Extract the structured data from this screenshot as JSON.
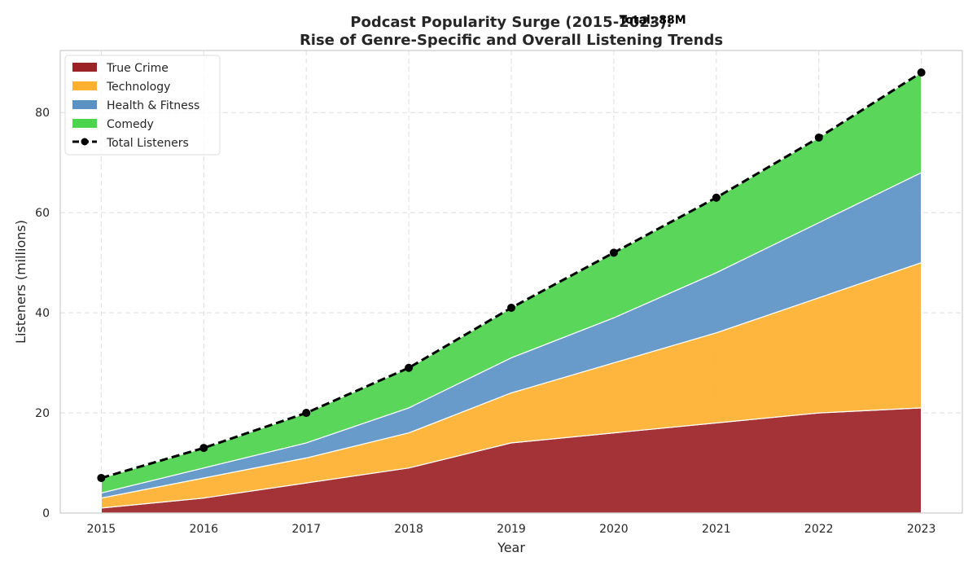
{
  "chart_data": {
    "type": "area",
    "title_line1": "Podcast Popularity Surge (2015-2023):",
    "title_line2": "Rise of Genre-Specific and Overall Listening Trends",
    "xlabel": "Year",
    "ylabel": "Listeners (millions)",
    "x": [
      2015,
      2016,
      2017,
      2018,
      2019,
      2020,
      2021,
      2022,
      2023
    ],
    "xlim": [
      2014.6,
      2023.4
    ],
    "ylim": [
      0,
      92.4
    ],
    "yticks": [
      0,
      20,
      40,
      60,
      80
    ],
    "grid": true,
    "legend_position": "top-left",
    "series": [
      {
        "name": "True Crime",
        "color": "#9b2226",
        "values": [
          1,
          3,
          6,
          9,
          14,
          16,
          18,
          20,
          21
        ]
      },
      {
        "name": "Technology",
        "color": "#ffb02e",
        "values": [
          2,
          4,
          5,
          7,
          10,
          14,
          18,
          23,
          29
        ]
      },
      {
        "name": "Health & Fitness",
        "color": "#5b92c4",
        "values": [
          1,
          2,
          3,
          5,
          7,
          9,
          12,
          15,
          18
        ]
      },
      {
        "name": "Comedy",
        "color": "#4cd44c",
        "values": [
          3,
          4,
          6,
          8,
          10,
          13,
          15,
          17,
          20
        ]
      }
    ],
    "total": {
      "name": "Total Listeners",
      "color": "#000000",
      "values": [
        7,
        13,
        20,
        29,
        41,
        52,
        63,
        75,
        88
      ]
    },
    "annotation": {
      "text": "Total: 88M",
      "x": 2023,
      "y": 88
    }
  }
}
